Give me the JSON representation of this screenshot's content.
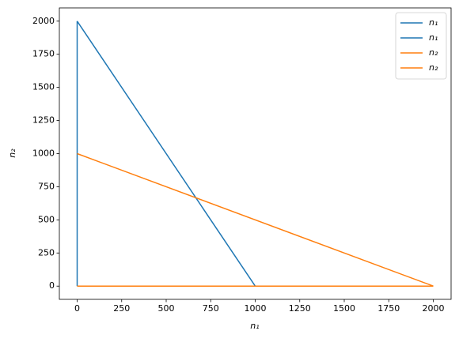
{
  "chart_data": {
    "type": "line",
    "xlabel": "n₁",
    "ylabel": "n₂",
    "series": [
      {
        "name": "n₁",
        "color": "#1f77b4",
        "x": [
          0,
          0
        ],
        "values": [
          0,
          2000
        ]
      },
      {
        "name": "n₁",
        "color": "#1f77b4",
        "x": [
          0,
          1000
        ],
        "values": [
          2000,
          0
        ]
      },
      {
        "name": "n₂",
        "color": "#ff7f0e",
        "x": [
          0,
          2000
        ],
        "values": [
          1000,
          0
        ]
      },
      {
        "name": "n₂",
        "color": "#ff7f0e",
        "x": [
          0,
          2000
        ],
        "values": [
          0,
          0
        ]
      }
    ],
    "xlim": [
      -100,
      2100
    ],
    "ylim": [
      -100,
      2100
    ],
    "xticks": [
      0,
      250,
      500,
      750,
      1000,
      1250,
      1500,
      1750,
      2000
    ],
    "yticks": [
      0,
      250,
      500,
      750,
      1000,
      1250,
      1500,
      1750,
      2000
    ],
    "legend": "upper right"
  }
}
